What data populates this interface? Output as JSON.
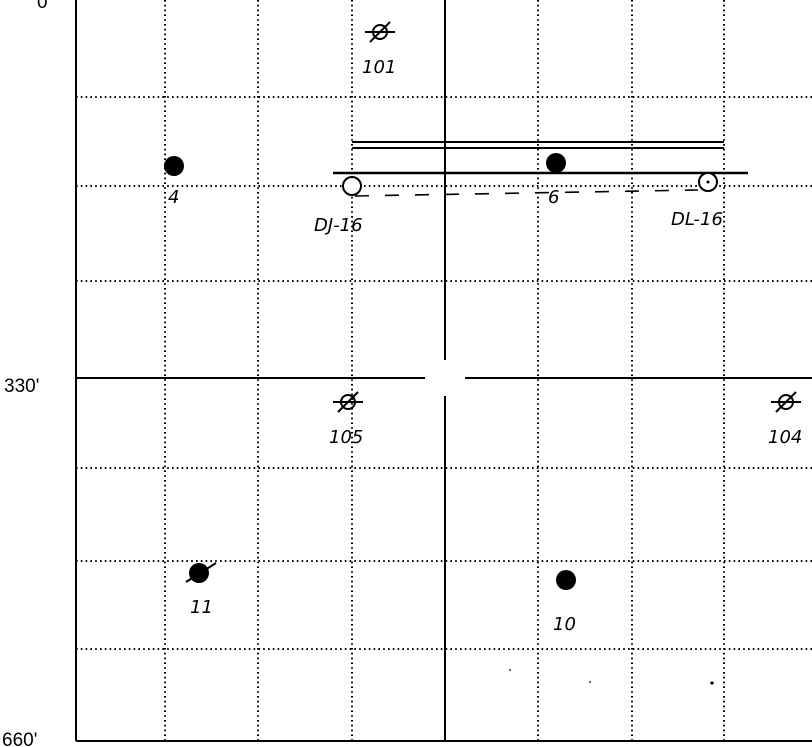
{
  "axis_labels": {
    "top": "0'",
    "middle": "330'",
    "bottom": "660'"
  },
  "wells": [
    {
      "id": "well-4",
      "label": "4",
      "status": "producing",
      "symbol": "filled-circle-icon"
    },
    {
      "id": "well-6",
      "label": "6",
      "status": "producing",
      "symbol": "filled-circle-icon"
    },
    {
      "id": "well-10",
      "label": "10",
      "status": "producing",
      "symbol": "filled-circle-icon"
    },
    {
      "id": "well-11",
      "label": "11",
      "status": "abandoned-producer",
      "symbol": "struck-filled-circle-icon"
    },
    {
      "id": "well-dj16",
      "label": "DJ-16",
      "status": "proposed",
      "symbol": "open-circle-icon"
    },
    {
      "id": "well-dl16",
      "label": "DL-16",
      "status": "proposed",
      "symbol": "open-circle-icon"
    },
    {
      "id": "well-101",
      "label": "101",
      "status": "plugged",
      "symbol": "plugged-well-icon"
    },
    {
      "id": "well-105",
      "label": "105",
      "status": "plugged",
      "symbol": "plugged-well-icon"
    },
    {
      "id": "well-104",
      "label": "104",
      "status": "plugged",
      "symbol": "plugged-well-icon"
    }
  ],
  "colors": {
    "ink": "#000000",
    "background": "#ffffff"
  }
}
